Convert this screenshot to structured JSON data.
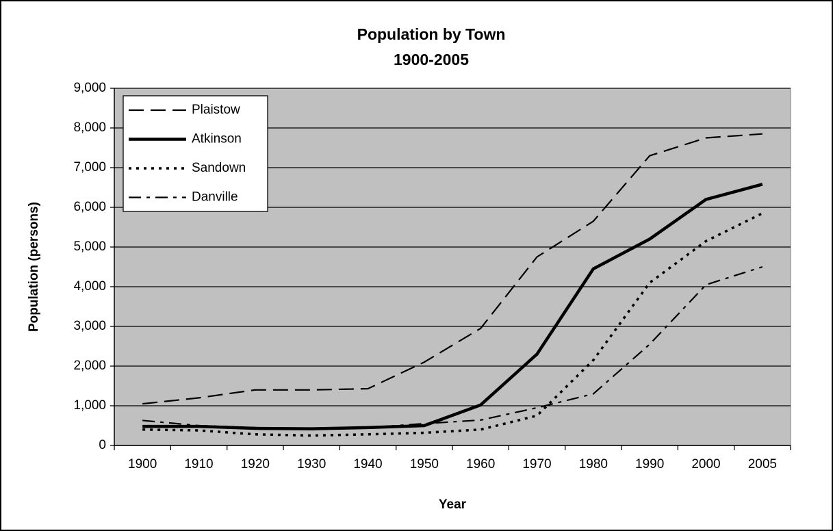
{
  "chart_data": {
    "type": "line",
    "title": "Population by Town",
    "subtitle": "1900-2005",
    "x_label": "Year",
    "y_label": "Population (persons)",
    "categories": [
      "1900",
      "1910",
      "1920",
      "1930",
      "1940",
      "1950",
      "1960",
      "1970",
      "1980",
      "1990",
      "2000",
      "2005"
    ],
    "series": [
      {
        "name": "Plaistow",
        "color": "#000000",
        "style": "dashed",
        "values": [
          1050,
          1200,
          1400,
          1400,
          1430,
          2100,
          2950,
          4750,
          5650,
          7300,
          7750,
          7850
        ]
      },
      {
        "name": "Atkinson",
        "color": "#000000",
        "style": "solid",
        "values": [
          480,
          480,
          430,
          420,
          450,
          500,
          1020,
          2300,
          4450,
          5200,
          6200,
          6580
        ]
      },
      {
        "name": "Sandown",
        "color": "#000000",
        "style": "dotted",
        "values": [
          400,
          380,
          280,
          250,
          280,
          320,
          400,
          750,
          2150,
          4100,
          5150,
          5850
        ]
      },
      {
        "name": "Danville",
        "color": "#000000",
        "style": "dashdot",
        "values": [
          630,
          500,
          450,
          400,
          450,
          550,
          640,
          950,
          1300,
          2550,
          4050,
          4500
        ]
      }
    ],
    "ylim": [
      0,
      9000
    ],
    "yticks": [
      0,
      {
        "value": 1000,
        "label": "1,000"
      },
      {
        "value": 2000,
        "label": "2,000"
      },
      {
        "value": 3000,
        "label": "3,000"
      },
      {
        "value": 4000,
        "label": "4,000"
      },
      {
        "value": 5000,
        "label": "5,000"
      },
      {
        "value": 6000,
        "label": "6,000"
      },
      {
        "value": 7000,
        "label": "7,000"
      },
      {
        "value": 8000,
        "label": "8,000"
      },
      {
        "value": 9000,
        "label": "9,000"
      }
    ],
    "grid": true,
    "plot_background": "#c0c0c0",
    "legend": "upper left"
  }
}
